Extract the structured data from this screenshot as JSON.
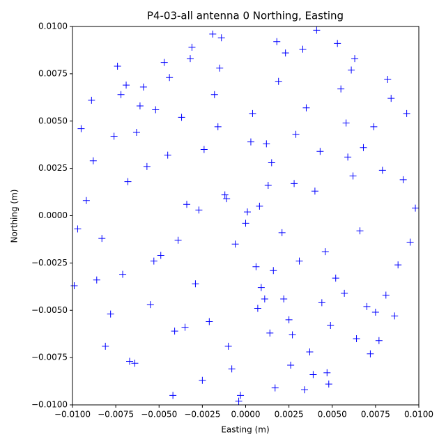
{
  "chart_data": {
    "type": "scatter",
    "title": "P4-03-all antenna 0 Northing, Easting",
    "xlabel": "Easting (m)",
    "ylabel": "Northing (m)",
    "xlim": [
      -0.01,
      0.01
    ],
    "ylim": [
      -0.01,
      0.01
    ],
    "xticks": [
      {
        "value": -0.01,
        "label": "−0.0100"
      },
      {
        "value": -0.0075,
        "label": "−0.0075"
      },
      {
        "value": -0.005,
        "label": "−0.0050"
      },
      {
        "value": -0.0025,
        "label": "−0.0025"
      },
      {
        "value": 0,
        "label": "0.0000"
      },
      {
        "value": 0.0025,
        "label": "0.0025"
      },
      {
        "value": 0.005,
        "label": "0.0050"
      },
      {
        "value": 0.0075,
        "label": "0.0075"
      },
      {
        "value": 0.01,
        "label": "0.0100"
      }
    ],
    "yticks": [
      {
        "value": -0.01,
        "label": "−0.0100"
      },
      {
        "value": -0.0075,
        "label": "−0.0075"
      },
      {
        "value": -0.005,
        "label": "−0.0050"
      },
      {
        "value": -0.0025,
        "label": "−0.0025"
      },
      {
        "value": 0,
        "label": "0.0000"
      },
      {
        "value": 0.0025,
        "label": "0.0025"
      },
      {
        "value": 0.005,
        "label": "0.0050"
      },
      {
        "value": 0.0075,
        "label": "0.0075"
      },
      {
        "value": 0.01,
        "label": "0.0100"
      }
    ],
    "color": "#0000ff",
    "marker": "+",
    "x": [
      -0.0012,
      0.0031,
      -0.0045,
      0.0057,
      0.0008,
      -0.0068,
      0.0021,
      -0.0029,
      0.0074,
      -0.0083,
      0.0015,
      -0.0037,
      0.0049,
      -0.0006,
      0.0062,
      -0.0055,
      0.0003,
      0.0088,
      -0.0092,
      0.0027,
      -0.0018,
      0.004,
      -0.0071,
      0.0011,
      0.0066,
      -0.0024,
      0.0035,
      -0.0049,
      0.0079,
      -0.001,
      0.0052,
      -0.0063,
      0.0019,
      -0.0034,
      0.0095,
      -0.0078,
      0.0006,
      0.0043,
      -0.0015,
      0.0025,
      -0.0088,
      0.007,
      -0.0041,
      0.0013,
      0.0058,
      -0.0027,
      0.0084,
      -0.0059,
      0.0,
      0.0037,
      -0.0097,
      0.0023,
      -0.0052,
      0.0064,
      -0.0008,
      0.0046,
      -0.0032,
      0.0091,
      -0.0067,
      0.0017,
      -0.0044,
      0.0029,
      -0.0021,
      0.0055,
      -0.0076,
      0.0009,
      0.0072,
      -0.0014,
      0.0039,
      -0.0061,
      0.0081,
      -0.0086,
      0.0004,
      0.0048,
      -0.0039,
      0.0016,
      -0.0095,
      0.0061,
      -0.0003,
      0.0033,
      -0.0057,
      0.0077,
      -0.0019,
      0.0044,
      -0.0072,
      0.0012,
      0.0098,
      -0.0047,
      0.0026,
      -0.0025,
      0.0068,
      -0.0081,
      0.0007,
      0.0053,
      -0.0035,
      0.0086,
      -0.0064,
      0.0018,
      -0.0011,
      0.0041,
      -0.0053,
      0.0034,
      -0.0069,
      0.0059,
      -0.0004,
      0.0093,
      -0.0089,
      0.0022,
      -0.0031,
      0.0047,
      -0.0074,
      0.0014,
      0.0075,
      -0.0016,
      0.0028,
      -0.0099,
      0.0063,
      -0.0042,
      0.0001,
      0.0082
    ],
    "y": [
      0.0011,
      -0.0024,
      0.0032,
      -0.0041,
      0.0005,
      0.0018,
      -0.0009,
      -0.0036,
      0.0047,
      -0.0012,
      0.0028,
      0.0052,
      -0.0058,
      -0.0015,
      0.0021,
      -0.0047,
      0.0039,
      -0.0026,
      0.0008,
      -0.0063,
      0.0064,
      0.0013,
      -0.0031,
      -0.0044,
      -0.0008,
      0.0035,
      0.0057,
      -0.0021,
      0.0024,
      -0.0069,
      -0.0033,
      0.0044,
      0.0071,
      0.0006,
      -0.0014,
      -0.0052,
      -0.0027,
      0.0034,
      0.0078,
      -0.0055,
      0.0029,
      -0.0048,
      -0.0061,
      0.0016,
      0.0049,
      0.0003,
      0.0062,
      0.0068,
      -0.0004,
      -0.0072,
      -0.0007,
      0.0086,
      0.0056,
      -0.0065,
      -0.0081,
      -0.0019,
      0.0083,
      0.0019,
      -0.0077,
      -0.0091,
      0.0073,
      0.0043,
      -0.0056,
      0.0067,
      0.0042,
      -0.0038,
      -0.0073,
      0.0094,
      -0.0084,
      0.0058,
      -0.0042,
      -0.0034,
      0.0054,
      -0.0089,
      -0.0013,
      -0.0029,
      0.0046,
      0.0077,
      -0.0095,
      0.0088,
      0.0026,
      -0.0066,
      0.0096,
      -0.0046,
      0.0064,
      0.0038,
      0.0004,
      0.0081,
      -0.0079,
      -0.0087,
      0.0036,
      -0.0069,
      -0.0049,
      0.0091,
      -0.0059,
      -0.0053,
      -0.0078,
      0.0092,
      0.0009,
      0.0098,
      -0.0024,
      -0.0092,
      0.0069,
      0.0031,
      -0.0098,
      0.0054,
      0.0061,
      -0.0044,
      0.0089,
      -0.0083,
      0.0079,
      -0.0062,
      -0.0051,
      0.0047,
      0.0017,
      -0.0037,
      0.0083,
      -0.0095,
      0.0002,
      0.0072
    ]
  }
}
